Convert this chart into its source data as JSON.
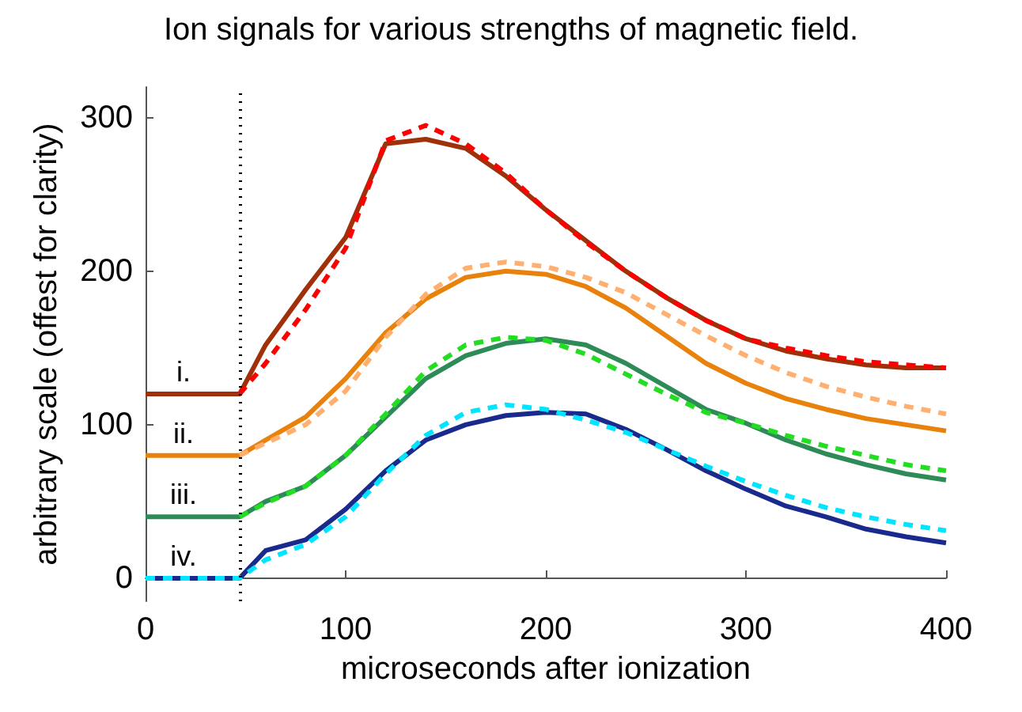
{
  "chart_data": {
    "type": "line",
    "title": "Ion signals for various strengths of magnetic field.",
    "xlabel": "microseconds after ionization",
    "ylabel": "arbitrary scale (offest for clarity)",
    "x": [
      0,
      47,
      60,
      80,
      100,
      120,
      140,
      160,
      180,
      200,
      220,
      240,
      260,
      280,
      300,
      320,
      340,
      360,
      380,
      400
    ],
    "series": [
      {
        "color": "#ff0000",
        "line_style": "dashed",
        "values": [
          null,
          120,
          140,
          175,
          215,
          285,
          295,
          283,
          264,
          240,
          219,
          200,
          183,
          168,
          156,
          150,
          145,
          141,
          139,
          137
        ]
      },
      {
        "color": "#a0300a",
        "line_style": "solid",
        "values": [
          120,
          120,
          152,
          188,
          222,
          283,
          286,
          280,
          262,
          240,
          220,
          200,
          183,
          168,
          156,
          148,
          143,
          139,
          137,
          137
        ]
      },
      {
        "color": "#ffb070",
        "line_style": "dashed",
        "values": [
          null,
          80,
          88,
          100,
          122,
          157,
          185,
          202,
          206,
          203,
          196,
          186,
          172,
          158,
          145,
          134,
          125,
          118,
          112,
          107
        ]
      },
      {
        "color": "#e8820c",
        "line_style": "solid",
        "values": [
          80,
          80,
          90,
          105,
          130,
          160,
          182,
          196,
          200,
          198,
          190,
          176,
          158,
          140,
          127,
          117,
          110,
          104,
          100,
          96
        ]
      },
      {
        "color": "#22dd22",
        "line_style": "dashed",
        "values": [
          null,
          40,
          49,
          60,
          80,
          107,
          135,
          152,
          157,
          155,
          146,
          133,
          120,
          108,
          101,
          93,
          86,
          80,
          74,
          70
        ]
      },
      {
        "color": "#2e8b57",
        "line_style": "solid",
        "values": [
          40,
          40,
          50,
          60,
          80,
          105,
          130,
          145,
          153,
          156,
          152,
          140,
          125,
          110,
          101,
          90,
          81,
          74,
          68,
          64
        ]
      },
      {
        "color": "#00e5ff",
        "line_style": "dashed",
        "values": [
          0,
          0,
          12,
          22,
          40,
          68,
          93,
          108,
          113,
          110,
          103,
          95,
          84,
          73,
          63,
          54,
          46,
          40,
          35,
          31
        ]
      },
      {
        "color": "#1a2a8c",
        "line_style": "solid",
        "values": [
          0,
          0,
          18,
          25,
          45,
          70,
          90,
          100,
          106,
          108,
          107,
          97,
          84,
          70,
          58,
          47,
          40,
          32,
          27,
          23
        ]
      }
    ],
    "annotations": [
      "i.",
      "ii.",
      "iii.",
      "iv."
    ],
    "ref_lines": [
      {
        "axis": "x",
        "value": 47,
        "color": "#000000",
        "line_style": "dotted"
      }
    ],
    "xlim": [
      0,
      400
    ],
    "xticks": [
      0,
      100,
      200,
      300,
      400
    ],
    "ylim": [
      -15,
      320
    ],
    "yticks": [
      0,
      100,
      200,
      300
    ],
    "grid": false,
    "marker": "none"
  }
}
